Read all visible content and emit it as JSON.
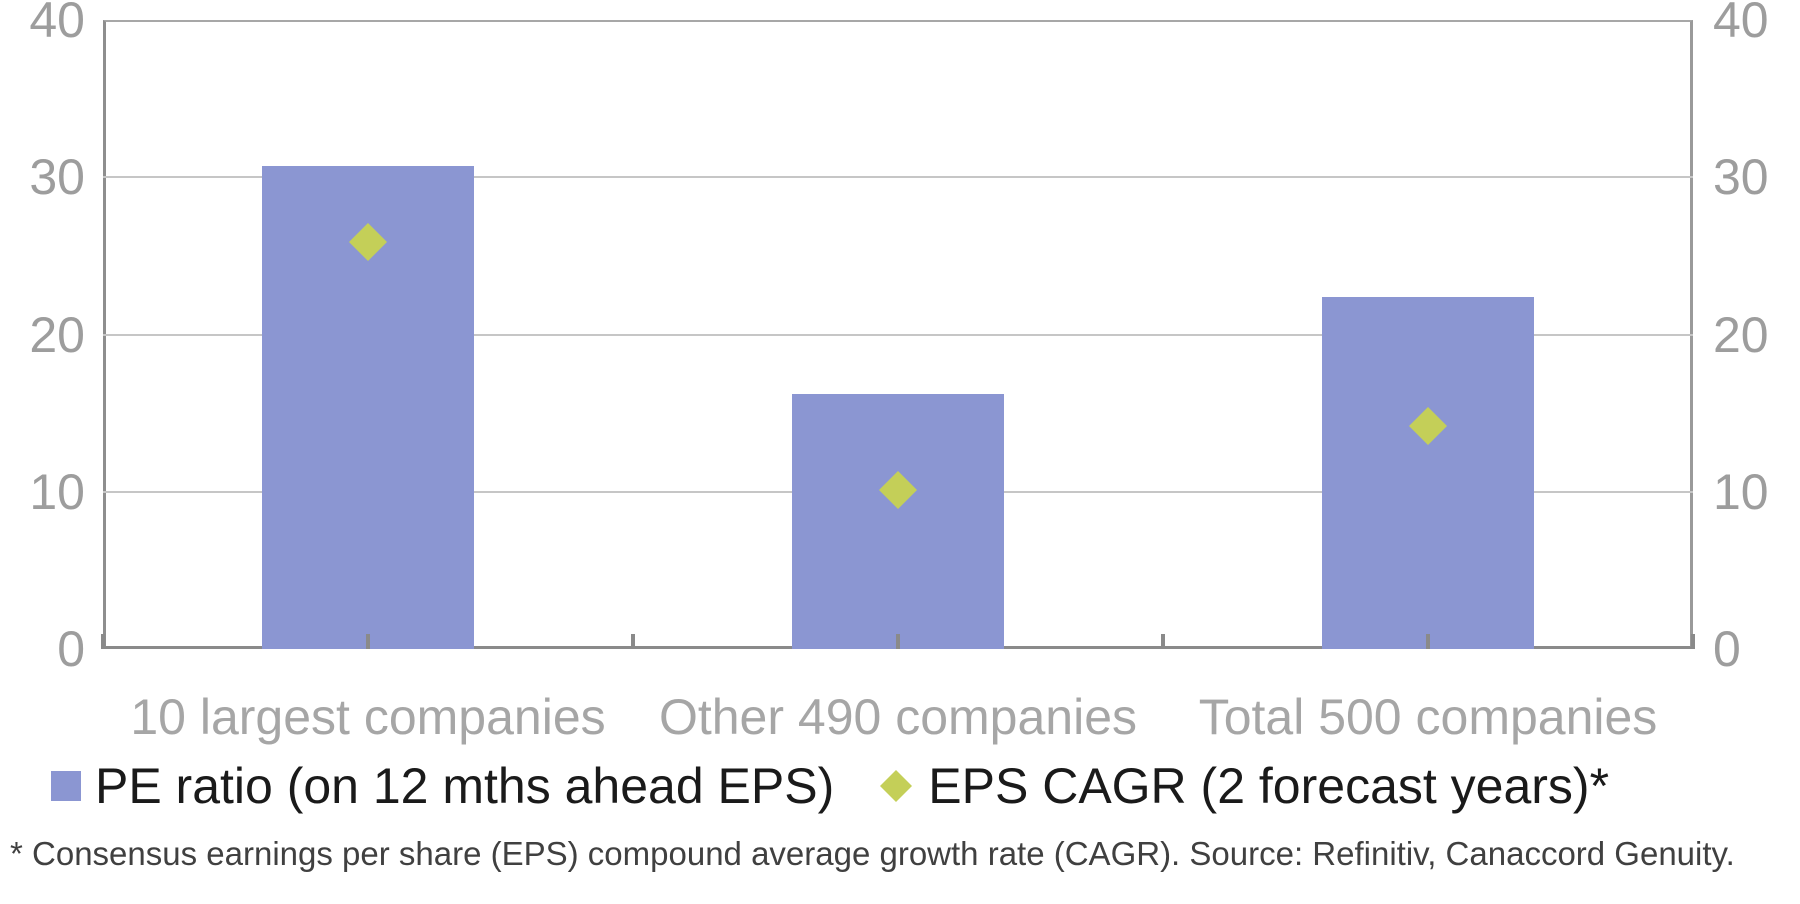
{
  "chart_data": {
    "type": "bar",
    "categories": [
      "10 largest companies",
      "Other 490 companies",
      "Total 500 companies"
    ],
    "series": [
      {
        "name": "PE ratio (on 12 mths ahead EPS)",
        "type": "bar",
        "marker": "square",
        "color": "#8b96d2",
        "values": [
          30.7,
          16.2,
          22.4
        ]
      },
      {
        "name": "EPS CAGR (2 forecast years)*",
        "type": "scatter",
        "marker": "diamond",
        "color": "#c4cf58",
        "values": [
          25.9,
          10.1,
          14.2
        ]
      }
    ],
    "title": "",
    "xlabel": "",
    "ylabel": "",
    "ylim": [
      0,
      40
    ],
    "yticks": [
      0,
      10,
      20,
      30,
      40
    ],
    "y_axis_sides": [
      "left",
      "right"
    ],
    "grid": true,
    "legend_position": "bottom",
    "footnote": "* Consensus earnings per share (EPS) compound average growth rate (CAGR). Source: Refinitiv, Canaccord Genuity."
  },
  "colors": {
    "bar": "#8b96d2",
    "marker": "#c4cf58",
    "gridline": "#c6c6c6",
    "axis_line": "#8a8a8a",
    "tick_label": "#9d9d9d",
    "category_label": "#a6a6a6",
    "legend_text": "#1a1a1a",
    "footnote_text": "#404040",
    "background": "#ffffff"
  }
}
